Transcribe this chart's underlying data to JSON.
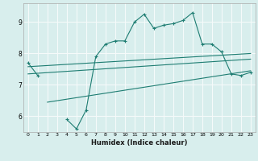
{
  "x": [
    0,
    1,
    2,
    3,
    4,
    5,
    6,
    7,
    8,
    9,
    10,
    11,
    12,
    13,
    14,
    15,
    16,
    17,
    18,
    19,
    20,
    21,
    22,
    23
  ],
  "main_line": [
    7.7,
    7.3,
    null,
    null,
    5.9,
    5.6,
    6.2,
    7.9,
    8.3,
    8.4,
    8.4,
    9.0,
    9.25,
    8.8,
    8.9,
    8.95,
    9.05,
    9.3,
    8.3,
    8.3,
    8.05,
    7.35,
    7.3,
    7.4
  ],
  "trend_line1_x": [
    0,
    23
  ],
  "trend_line1_y": [
    7.58,
    8.0
  ],
  "trend_line2_x": [
    0,
    23
  ],
  "trend_line2_y": [
    7.35,
    7.82
  ],
  "trend_line3_x": [
    2,
    23
  ],
  "trend_line3_y": [
    6.45,
    7.45
  ],
  "bg_color": "#d8eeed",
  "grid_color": "#f5fafa",
  "line_color": "#1e7d72",
  "xlabel": "Humidex (Indice chaleur)",
  "ylim": [
    5.5,
    9.6
  ],
  "xlim": [
    -0.5,
    23.5
  ],
  "yticks": [
    6,
    7,
    8,
    9
  ],
  "xticks": [
    0,
    1,
    2,
    3,
    4,
    5,
    6,
    7,
    8,
    9,
    10,
    11,
    12,
    13,
    14,
    15,
    16,
    17,
    18,
    19,
    20,
    21,
    22,
    23
  ]
}
